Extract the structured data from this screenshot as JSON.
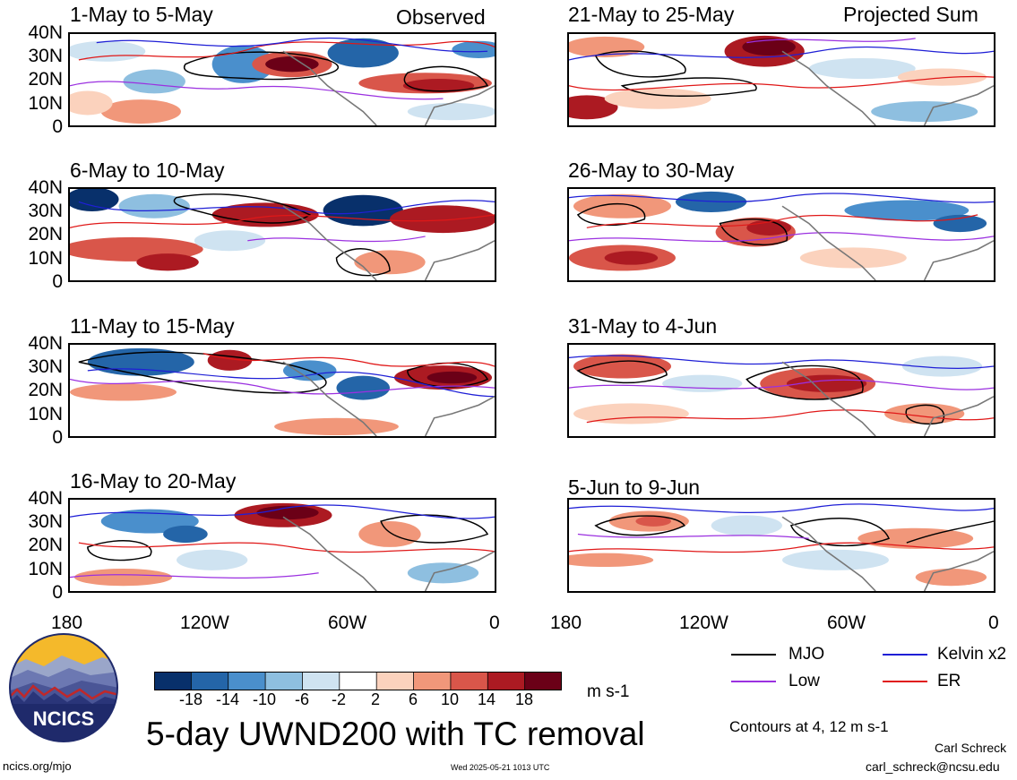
{
  "headers": {
    "left": "Observed",
    "right": "Projected Sum"
  },
  "panels": [
    {
      "title": "1-May to 5-May"
    },
    {
      "title": "6-May to 10-May"
    },
    {
      "title": "11-May to 15-May"
    },
    {
      "title": "16-May to 20-May"
    },
    {
      "title": "21-May to 25-May"
    },
    {
      "title": "26-May to 30-May"
    },
    {
      "title": "31-May to 4-Jun"
    },
    {
      "title": "5-Jun to 9-Jun"
    }
  ],
  "lat_labels": [
    "40N",
    "30N",
    "20N",
    "10N",
    "0"
  ],
  "lon_labels": [
    "180",
    "120W",
    "60W",
    "0"
  ],
  "legend": {
    "items": [
      {
        "label": "MJO",
        "color": "#000000"
      },
      {
        "label": "Kelvin x2",
        "color": "#1f1fd6"
      },
      {
        "label": "Low",
        "color": "#9b30e0"
      },
      {
        "label": "ER",
        "color": "#e01818"
      }
    ],
    "contours_note": "Contours at 4, 12 m s-1"
  },
  "colorbar": {
    "ticks": [
      "-18",
      "-14",
      "-10",
      "-6",
      "-2",
      "2",
      "6",
      "10",
      "14",
      "18"
    ],
    "units": "m s-1",
    "colors": [
      "#08306b",
      "#2465a8",
      "#4a8fcc",
      "#8ebfe0",
      "#cfe3f1",
      "#ffffff",
      "#fbd2bd",
      "#f1977a",
      "#d9564a",
      "#ac1a22",
      "#6b0017"
    ]
  },
  "main_title": "5-day UWND200 with TC removal",
  "logo_text": "NCICS",
  "footer": {
    "url": "ncics.org/mjo",
    "timestamp": "Wed 2025-05-21 1013 UTC",
    "author": "Carl Schreck",
    "email": "carl_schreck@ncsu.edu"
  }
}
